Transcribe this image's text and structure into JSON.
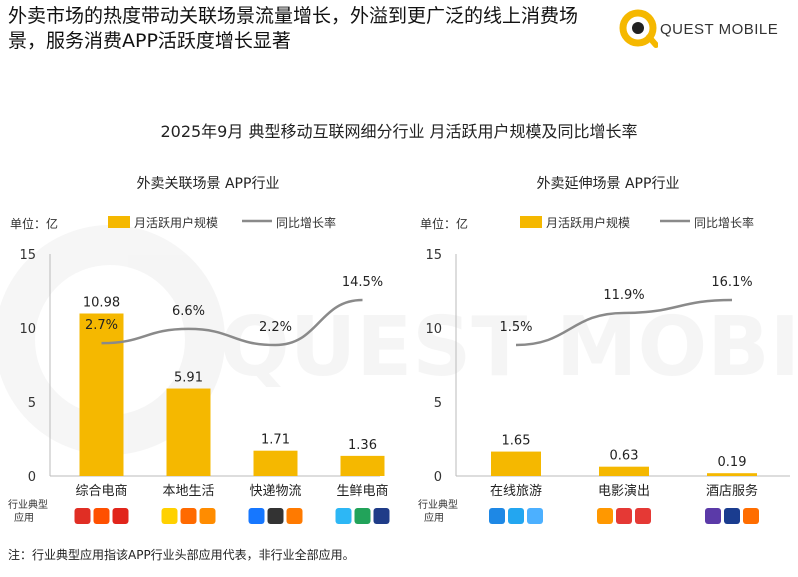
{
  "headline": "外卖市场的热度带动关联场景流量增长，外溢到更广泛的线上消费场景，服务消费APP活跃度增长显著",
  "brand": {
    "name": "QUEST MOBILE",
    "watermark": "QUEST MOBILE",
    "accent": "#f5b800"
  },
  "chart_title": "2025年9月 典型移动互联网细分行业 月活跃用户规模及同比增长率",
  "row_label": "行业典型应用",
  "footnote": "注：行业典型应用指该APP行业头部应用代表，非行业全部应用。",
  "colors": {
    "bar": "#f5b800",
    "line": "#8a8a8a",
    "axis": "#bbbbbb"
  },
  "chart_data": [
    {
      "type": "bar",
      "title": "外卖关联场景 APP行业",
      "unit_label": "单位：亿",
      "legend": {
        "bar": "月活跃用户规模",
        "line": "同比增长率",
        "placement": "top"
      },
      "ylim": [
        0,
        15
      ],
      "yticks": [
        0,
        5,
        10,
        15
      ],
      "categories": [
        "综合电商",
        "本地生活",
        "快递物流",
        "生鲜电商"
      ],
      "series": [
        {
          "name": "月活跃用户规模",
          "kind": "bar",
          "values": [
            10.98,
            5.91,
            1.71,
            1.36
          ],
          "labels": [
            "10.98",
            "5.91",
            "1.71",
            "1.36"
          ]
        },
        {
          "name": "同比增长率",
          "kind": "line",
          "values": [
            2.7,
            6.6,
            2.2,
            14.5
          ],
          "labels": [
            "2.7%",
            "6.6%",
            "2.2%",
            "14.5%"
          ]
        }
      ]
    },
    {
      "type": "bar",
      "title": "外卖延伸场景 APP行业",
      "unit_label": "单位：亿",
      "legend": {
        "bar": "月活跃用户规模",
        "line": "同比增长率",
        "placement": "top"
      },
      "ylim": [
        0,
        15
      ],
      "yticks": [
        0,
        5,
        10,
        15
      ],
      "categories": [
        "在线旅游",
        "电影演出",
        "酒店服务"
      ],
      "series": [
        {
          "name": "月活跃用户规模",
          "kind": "bar",
          "values": [
            1.65,
            0.63,
            0.19
          ],
          "labels": [
            "1.65",
            "0.63",
            "0.19"
          ]
        },
        {
          "name": "同比增长率",
          "kind": "line",
          "values": [
            1.5,
            11.9,
            16.1
          ],
          "labels": [
            "1.5%",
            "11.9%",
            "16.1%"
          ]
        }
      ]
    }
  ],
  "app_icons": [
    [
      [
        {
          "color": "#e02e24"
        },
        {
          "color": "#ff5000"
        },
        {
          "color": "#e1251b"
        }
      ],
      [
        {
          "color": "#ffd100"
        },
        {
          "color": "#ff6a00"
        },
        {
          "color": "#ff8c00"
        }
      ],
      [
        {
          "color": "#1677ff"
        },
        {
          "color": "#333333"
        },
        {
          "color": "#ff7a00"
        }
      ],
      [
        {
          "color": "#2db7f5"
        },
        {
          "color": "#22a35a"
        },
        {
          "color": "#1f3c88"
        }
      ]
    ],
    [
      [
        {
          "color": "#1e88e5"
        },
        {
          "color": "#23a6f0"
        },
        {
          "color": "#4cb0ff"
        }
      ],
      [
        {
          "color": "#ff9800"
        },
        {
          "color": "#e53935"
        },
        {
          "color": "#e53935"
        }
      ],
      [
        {
          "color": "#5b3aa8"
        },
        {
          "color": "#1a3c8f"
        },
        {
          "color": "#ff6d00"
        }
      ]
    ]
  ]
}
